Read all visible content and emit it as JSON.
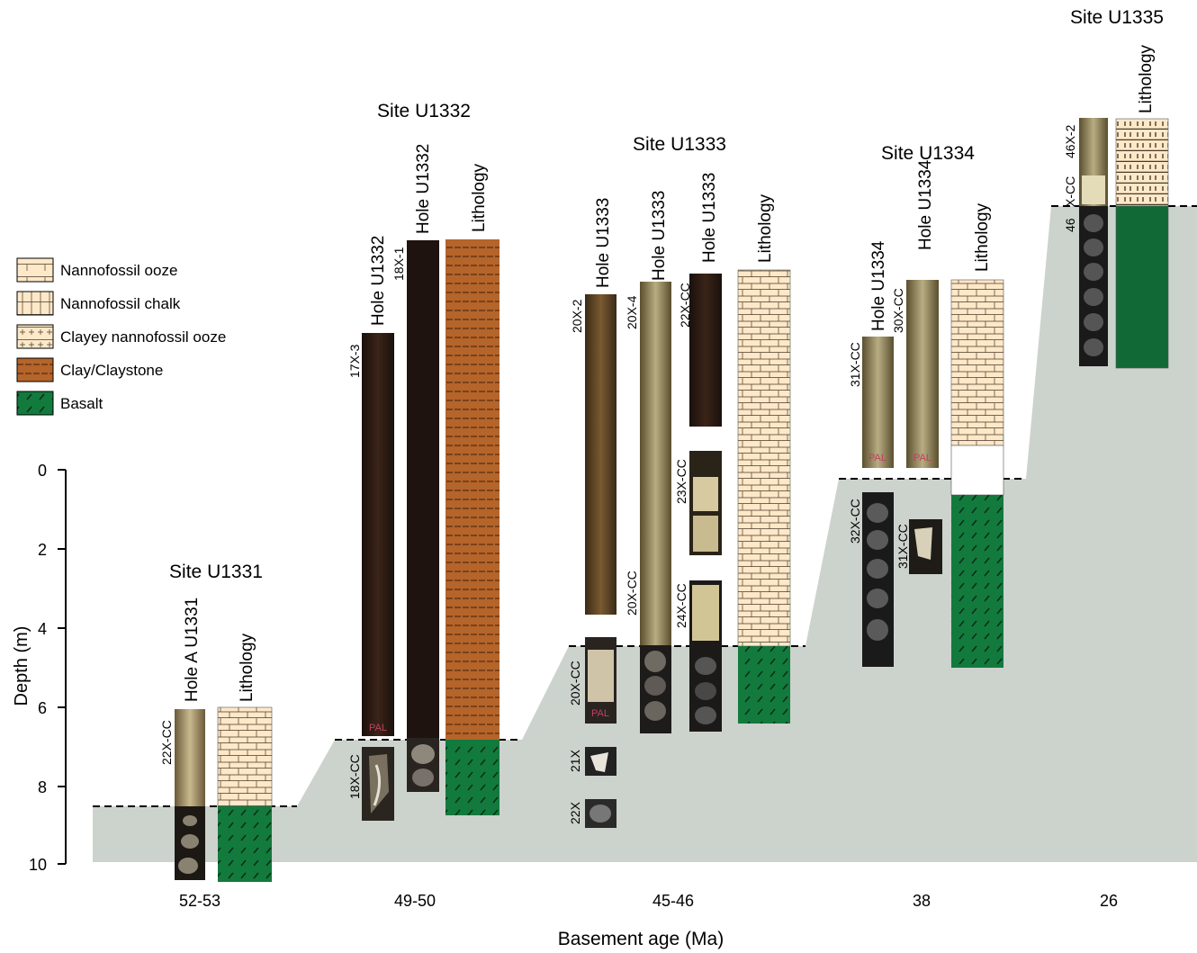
{
  "legend": [
    {
      "label": "Nannofossil ooze",
      "pattern": "ooze"
    },
    {
      "label": "Nannofossil chalk",
      "pattern": "chalk"
    },
    {
      "label": "Clayey nannofossil ooze",
      "pattern": "clayooze"
    },
    {
      "label": "Clay/Claystone",
      "pattern": "clay"
    },
    {
      "label": "Basalt",
      "pattern": "basalt"
    }
  ],
  "axis": {
    "ylabel": "Depth (m)",
    "xlabel": "Basement age (Ma)",
    "yticks": [
      "0",
      "2",
      "4",
      "6",
      "8",
      "10"
    ]
  },
  "sites": [
    {
      "title": "Site U1331",
      "age": "52-53",
      "hole_labels": [
        "Hole A U1331"
      ],
      "lithology_label": "Lithology",
      "core_labels": [
        "22X-CC"
      ]
    },
    {
      "title": "Site U1332",
      "age": "49-50",
      "hole_labels": [
        "Hole U1332",
        "Hole U1332"
      ],
      "lithology_label": "Lithology",
      "core_labels": [
        "17X-3",
        "18X-1",
        "18X-CC"
      ]
    },
    {
      "title": "Site U1333",
      "age": "45-46",
      "hole_labels": [
        "Hole U1333",
        "Hole U1333",
        "Hole U1333"
      ],
      "lithology_label": "Lithology",
      "core_labels": [
        "20X-2",
        "20X-4",
        "22X-CC",
        "23X-CC",
        "20X-CC",
        "24X-CC",
        "20X-CC",
        "21X",
        "22X"
      ]
    },
    {
      "title": "Site U1334",
      "age": "38",
      "hole_labels": [
        "Hole U1334",
        "Hole U1334"
      ],
      "lithology_label": "Lithology",
      "core_labels": [
        "31X-CC",
        "30X-CC",
        "32X-CC",
        "31X-CC"
      ]
    },
    {
      "title": "Site U1335",
      "age": "26",
      "hole_labels": [],
      "lithology_label": "Lithology",
      "core_labels": [
        "46X-2",
        "X-CC",
        "46"
      ]
    }
  ],
  "core_text": {
    "pal": "PAL"
  },
  "colors": {
    "sediment": "#fde8c8",
    "clay": "#b5642a",
    "basalt": "#137a3d",
    "basement": "#ccd2cc",
    "dark_core": "#2b1d17"
  }
}
